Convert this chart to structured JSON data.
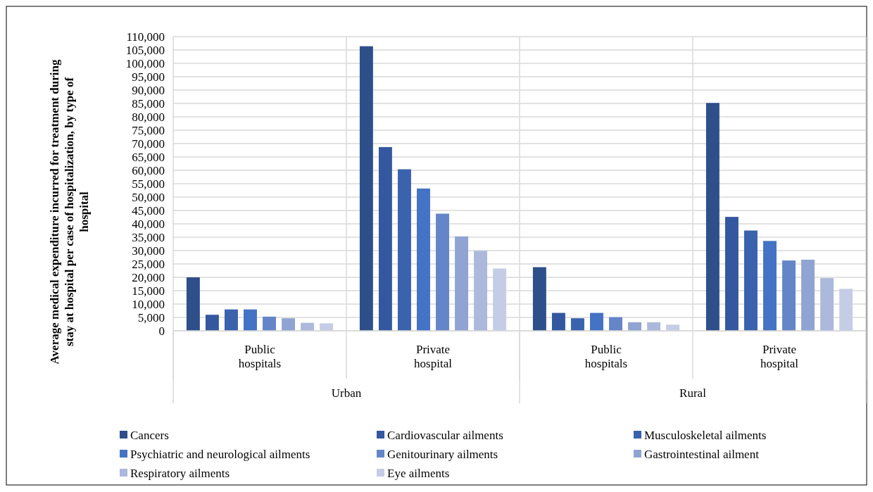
{
  "chart_data": {
    "type": "bar",
    "ylabel": "Average medical expenditure incurred for treatment during stay at hospital per case of hospitalization, by type of hospital",
    "categories": [
      "Public hospitals",
      "Private hospital",
      "Public hospitals",
      "Private hospital"
    ],
    "annotations": [
      "Urban",
      "Rural"
    ],
    "series": [
      {
        "name": "Cancers",
        "color": "#2e4f8a",
        "values": [
          20000,
          106400,
          23800,
          85200
        ]
      },
      {
        "name": "Cardiovascular ailments",
        "color": "#3358a0",
        "values": [
          6000,
          68700,
          6700,
          42600
        ]
      },
      {
        "name": "Musculoskeletal ailments",
        "color": "#3a62ad",
        "values": [
          8000,
          60400,
          4700,
          37500
        ]
      },
      {
        "name": "Psychiatric and neurological ailments",
        "color": "#4472c4",
        "values": [
          8000,
          53200,
          6700,
          33600
        ]
      },
      {
        "name": "Genitourinary ailments",
        "color": "#6585c9",
        "values": [
          5300,
          43800,
          5100,
          26300
        ]
      },
      {
        "name": "Gastrointestinal ailment",
        "color": "#8fa4d2",
        "values": [
          4700,
          35300,
          3200,
          26600
        ]
      },
      {
        "name": "Respiratory ailments",
        "color": "#acb9dc",
        "values": [
          3000,
          29900,
          3200,
          19700
        ]
      },
      {
        "name": "Eye ailments",
        "color": "#c5cde6",
        "values": [
          2800,
          23300,
          2300,
          15700
        ]
      }
    ],
    "ylim": [
      0,
      110000
    ],
    "yticks": [
      {
        "value": 0,
        "label": "0"
      },
      {
        "value": 5000,
        "label": "5,000"
      },
      {
        "value": 10000,
        "label": "10,000"
      },
      {
        "value": 15000,
        "label": "15,000"
      },
      {
        "value": 20000,
        "label": "20,000"
      },
      {
        "value": 25000,
        "label": "25,000"
      },
      {
        "value": 30000,
        "label": "30,000"
      },
      {
        "value": 35000,
        "label": "35,000"
      },
      {
        "value": 40000,
        "label": "40,000"
      },
      {
        "value": 45000,
        "label": "45,000"
      },
      {
        "value": 50000,
        "label": "50,000"
      },
      {
        "value": 55000,
        "label": "55,000"
      },
      {
        "value": 60000,
        "label": "60,000"
      },
      {
        "value": 65000,
        "label": "65,000"
      },
      {
        "value": 70000,
        "label": "70,000"
      },
      {
        "value": 75000,
        "label": "75,000"
      },
      {
        "value": 80000,
        "label": "80,000"
      },
      {
        "value": 85000,
        "label": "85,000"
      },
      {
        "value": 90000,
        "label": "90,000"
      },
      {
        "value": 95000,
        "label": "95,000"
      },
      {
        "value": 100000,
        "label": "100,000"
      },
      {
        "value": 105000,
        "label": "105,000"
      },
      {
        "value": 110000,
        "label": "110,000"
      }
    ],
    "grid": true,
    "legend": "bottom"
  }
}
